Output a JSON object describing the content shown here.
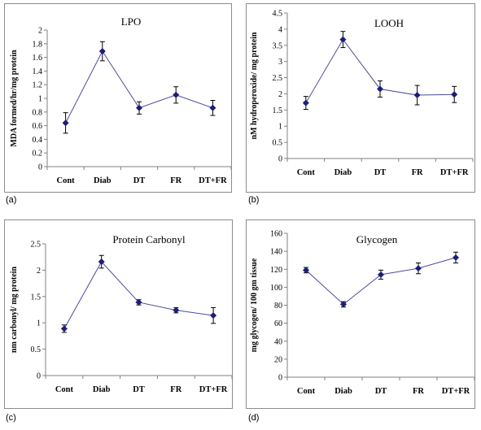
{
  "chart_data": [
    {
      "type": "line",
      "panel_label": "(a)",
      "title": "LPO",
      "ylabel": "MDA formed/hr/mg protein",
      "xlabel": "",
      "categories": [
        "Cont",
        "Diab",
        "DT",
        "FR",
        "DT+FR"
      ],
      "series": [
        {
          "values": [
            0.64,
            1.69,
            0.86,
            1.05,
            0.86
          ],
          "errors": [
            0.15,
            0.14,
            0.09,
            0.12,
            0.11
          ]
        }
      ],
      "ylim": [
        0,
        2
      ],
      "yticks": [
        "0",
        "0.2",
        "0.4",
        "0.6",
        "0.8",
        "1",
        "1.2",
        "1.4",
        "1.6",
        "1.8",
        "2"
      ],
      "grid": false,
      "line_color": "#4b4b9a",
      "marker_color": "#1c1c7a"
    },
    {
      "type": "line",
      "panel_label": "(b)",
      "title": "LOOH",
      "ylabel": "nM hydroperoxide/ mg protein",
      "xlabel": "",
      "categories": [
        "Cont",
        "Diab",
        "DT",
        "FR",
        "DT+FR"
      ],
      "series": [
        {
          "values": [
            1.72,
            3.68,
            2.15,
            1.96,
            1.98
          ],
          "errors": [
            0.2,
            0.25,
            0.25,
            0.3,
            0.25
          ]
        }
      ],
      "ylim": [
        0,
        4.5
      ],
      "yticks": [
        "0",
        "0.5",
        "1",
        "1.5",
        "2",
        "2.5",
        "3",
        "3.5",
        "4",
        "4.5"
      ],
      "grid": false,
      "line_color": "#4b4b9a",
      "marker_color": "#1c1c7a"
    },
    {
      "type": "line",
      "panel_label": "(c)",
      "title": "Protein Carbonyl",
      "ylabel": "nm carbonyl/ mg protein",
      "xlabel": "",
      "categories": [
        "Cont",
        "Diab",
        "DT",
        "FR",
        "DT+FR"
      ],
      "series": [
        {
          "values": [
            0.89,
            2.16,
            1.39,
            1.24,
            1.14
          ],
          "errors": [
            0.07,
            0.12,
            0.05,
            0.05,
            0.15
          ]
        }
      ],
      "ylim": [
        0,
        2.5
      ],
      "yticks": [
        "0",
        "0.5",
        "1",
        "1.5",
        "2",
        "2.5"
      ],
      "grid": false,
      "line_color": "#4b4b9a",
      "marker_color": "#1c1c7a"
    },
    {
      "type": "line",
      "panel_label": "(d)",
      "title": "Glycogen",
      "ylabel": "mg glycogen/ 100 gm tissue",
      "xlabel": "",
      "categories": [
        "Cont",
        "Diab",
        "DT",
        "FR",
        "DT+FR"
      ],
      "series": [
        {
          "values": [
            119,
            81,
            114,
            121,
            133
          ],
          "errors": [
            3,
            3,
            5,
            6,
            6
          ]
        }
      ],
      "ylim": [
        0,
        160
      ],
      "yticks": [
        "0",
        "20",
        "40",
        "60",
        "80",
        "100",
        "120",
        "140",
        "160"
      ],
      "grid": false,
      "line_color": "#4b4b9a",
      "marker_color": "#1c1c7a"
    }
  ]
}
